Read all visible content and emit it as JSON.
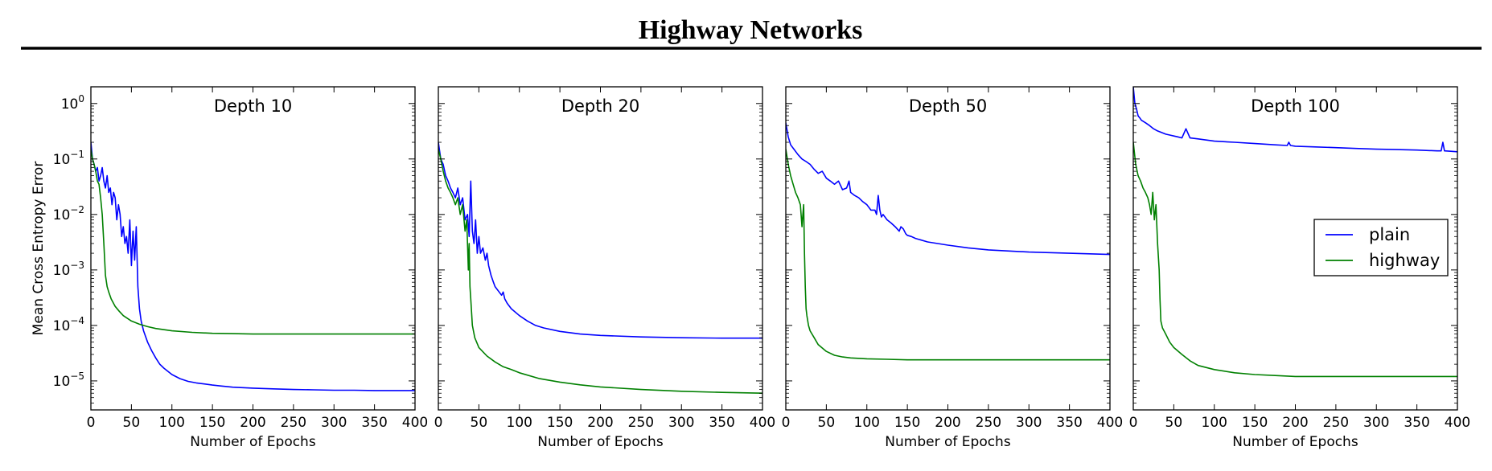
{
  "header": {
    "title": "Highway Networks"
  },
  "chart_data": [
    {
      "type": "line",
      "title": "Depth 10",
      "xlabel": "Number of Epochs",
      "ylabel": "Mean Cross Entropy Error",
      "yscale": "log",
      "xlim": [
        0,
        400
      ],
      "ylim": [
        3e-06,
        2
      ],
      "xticks": [
        "0",
        "50",
        "100",
        "150",
        "200",
        "250",
        "300",
        "350",
        "400"
      ],
      "yticks": [
        "10^0",
        "10^-1",
        "10^-2",
        "10^-3",
        "10^-4",
        "10^-5"
      ],
      "grid": false,
      "series": [
        {
          "name": "plain",
          "color": "#0000ff",
          "x": [
            0,
            2,
            4,
            6,
            8,
            10,
            12,
            14,
            16,
            18,
            20,
            22,
            24,
            26,
            28,
            30,
            32,
            34,
            36,
            38,
            40,
            42,
            44,
            46,
            48,
            50,
            52,
            54,
            56,
            58,
            60,
            62,
            65,
            70,
            75,
            80,
            85,
            90,
            100,
            110,
            120,
            130,
            140,
            150,
            160,
            175,
            200,
            225,
            250,
            275,
            300,
            325,
            350,
            375,
            400
          ],
          "y": [
            0.2,
            0.1,
            0.08,
            0.06,
            0.07,
            0.04,
            0.05,
            0.07,
            0.04,
            0.03,
            0.05,
            0.025,
            0.03,
            0.015,
            0.025,
            0.02,
            0.008,
            0.015,
            0.01,
            0.004,
            0.006,
            0.003,
            0.004,
            0.002,
            0.008,
            0.0012,
            0.005,
            0.0015,
            0.006,
            0.0005,
            0.0002,
            0.00012,
            8e-05,
            5e-05,
            3.5e-05,
            2.6e-05,
            2e-05,
            1.7e-05,
            1.3e-05,
            1.1e-05,
            9.8e-06,
            9.2e-06,
            8.8e-06,
            8.4e-06,
            8.1e-06,
            7.7e-06,
            7.4e-06,
            7.2e-06,
            7e-06,
            6.9e-06,
            6.8e-06,
            6.8e-06,
            6.7e-06,
            6.7e-06,
            6.7e-06
          ]
        },
        {
          "name": "highway",
          "color": "#008000",
          "x": [
            0,
            2,
            4,
            6,
            8,
            10,
            12,
            14,
            16,
            18,
            20,
            22,
            25,
            30,
            35,
            40,
            50,
            60,
            70,
            80,
            100,
            125,
            150,
            175,
            200,
            250,
            300,
            350,
            400
          ],
          "y": [
            0.15,
            0.1,
            0.08,
            0.06,
            0.04,
            0.035,
            0.02,
            0.01,
            0.003,
            0.0008,
            0.0005,
            0.0004,
            0.0003,
            0.00022,
            0.00018,
            0.00015,
            0.00012,
            0.000105,
            9.5e-05,
            8.8e-05,
            8e-05,
            7.5e-05,
            7.2e-05,
            7.1e-05,
            7e-05,
            7e-05,
            7e-05,
            7e-05,
            7e-05
          ]
        }
      ]
    },
    {
      "type": "line",
      "title": "Depth 20",
      "xlabel": "Number of Epochs",
      "yscale": "log",
      "xlim": [
        0,
        400
      ],
      "ylim": [
        3e-06,
        2
      ],
      "xticks": [
        "0",
        "50",
        "100",
        "150",
        "200",
        "250",
        "300",
        "350",
        "400"
      ],
      "grid": false,
      "series": [
        {
          "name": "plain",
          "color": "#0000ff",
          "x": [
            0,
            3,
            6,
            9,
            12,
            15,
            18,
            21,
            24,
            27,
            30,
            33,
            36,
            38,
            40,
            42,
            44,
            46,
            48,
            50,
            52,
            55,
            58,
            60,
            62,
            65,
            68,
            70,
            75,
            78,
            80,
            82,
            85,
            90,
            100,
            110,
            120,
            130,
            150,
            175,
            200,
            250,
            300,
            350,
            400
          ],
          "y": [
            0.2,
            0.1,
            0.08,
            0.05,
            0.04,
            0.03,
            0.025,
            0.02,
            0.03,
            0.015,
            0.02,
            0.008,
            0.01,
            0.004,
            0.04,
            0.005,
            0.003,
            0.008,
            0.002,
            0.004,
            0.002,
            0.0025,
            0.0015,
            0.002,
            0.0012,
            0.0008,
            0.0006,
            0.0005,
            0.0004,
            0.00035,
            0.0004,
            0.0003,
            0.00025,
            0.0002,
            0.00015,
            0.00012,
            0.0001,
            9e-05,
            7.8e-05,
            7e-05,
            6.6e-05,
            6.2e-05,
            6e-05,
            5.9e-05,
            5.9e-05
          ]
        },
        {
          "name": "highway",
          "color": "#008000",
          "x": [
            0,
            3,
            6,
            9,
            12,
            15,
            18,
            21,
            24,
            27,
            30,
            33,
            35,
            37,
            38,
            39,
            40,
            42,
            45,
            50,
            60,
            70,
            80,
            90,
            100,
            125,
            150,
            175,
            200,
            250,
            300,
            350,
            400
          ],
          "y": [
            0.15,
            0.1,
            0.06,
            0.04,
            0.03,
            0.025,
            0.02,
            0.015,
            0.02,
            0.01,
            0.015,
            0.005,
            0.008,
            0.001,
            0.003,
            0.0005,
            0.0003,
            0.0001,
            6e-05,
            4e-05,
            2.8e-05,
            2.2e-05,
            1.8e-05,
            1.6e-05,
            1.4e-05,
            1.1e-05,
            9.5e-06,
            8.5e-06,
            7.8e-06,
            7e-06,
            6.5e-06,
            6.2e-06,
            6e-06
          ]
        }
      ]
    },
    {
      "type": "line",
      "title": "Depth 50",
      "xlabel": "Number of Epochs",
      "yscale": "log",
      "xlim": [
        0,
        400
      ],
      "ylim": [
        3e-06,
        2
      ],
      "xticks": [
        "0",
        "50",
        "100",
        "150",
        "200",
        "250",
        "300",
        "350",
        "400"
      ],
      "grid": false,
      "series": [
        {
          "name": "plain",
          "color": "#0000ff",
          "x": [
            0,
            3,
            6,
            10,
            15,
            20,
            25,
            30,
            35,
            40,
            45,
            50,
            55,
            60,
            65,
            70,
            75,
            78,
            80,
            85,
            90,
            95,
            100,
            105,
            110,
            112,
            114,
            116,
            118,
            120,
            125,
            130,
            135,
            140,
            142,
            145,
            148,
            150,
            155,
            160,
            175,
            200,
            225,
            250,
            300,
            350,
            400
          ],
          "y": [
            0.45,
            0.25,
            0.18,
            0.15,
            0.12,
            0.1,
            0.09,
            0.08,
            0.065,
            0.055,
            0.06,
            0.045,
            0.04,
            0.035,
            0.04,
            0.028,
            0.03,
            0.04,
            0.025,
            0.022,
            0.02,
            0.017,
            0.015,
            0.012,
            0.012,
            0.01,
            0.022,
            0.012,
            0.009,
            0.01,
            0.008,
            0.007,
            0.006,
            0.005,
            0.006,
            0.0055,
            0.0045,
            0.0042,
            0.004,
            0.0037,
            0.0032,
            0.0028,
            0.0025,
            0.0023,
            0.0021,
            0.002,
            0.0019
          ]
        },
        {
          "name": "highway",
          "color": "#008000",
          "x": [
            0,
            3,
            6,
            9,
            12,
            15,
            18,
            20,
            21,
            22,
            23,
            24,
            25,
            26,
            28,
            30,
            35,
            40,
            50,
            60,
            70,
            80,
            100,
            125,
            150,
            175,
            200,
            250,
            300,
            350,
            400
          ],
          "y": [
            0.15,
            0.08,
            0.05,
            0.035,
            0.025,
            0.02,
            0.015,
            0.006,
            0.01,
            0.015,
            0.002,
            0.0005,
            0.0002,
            0.00015,
            0.0001,
            8e-05,
            6e-05,
            4.5e-05,
            3.4e-05,
            2.9e-05,
            2.7e-05,
            2.6e-05,
            2.5e-05,
            2.45e-05,
            2.4e-05,
            2.4e-05,
            2.4e-05,
            2.4e-05,
            2.4e-05,
            2.4e-05,
            2.4e-05
          ]
        }
      ]
    },
    {
      "type": "line",
      "title": "Depth 100",
      "xlabel": "Number of Epochs",
      "yscale": "log",
      "xlim": [
        0,
        400
      ],
      "ylim": [
        3e-06,
        2
      ],
      "xticks": [
        "0",
        "50",
        "100",
        "150",
        "200",
        "250",
        "300",
        "350",
        "400"
      ],
      "grid": false,
      "legend": {
        "position": "center-right",
        "entries": [
          "plain",
          "highway"
        ]
      },
      "series": [
        {
          "name": "plain",
          "color": "#0000ff",
          "x": [
            0,
            2,
            4,
            6,
            8,
            10,
            15,
            20,
            25,
            30,
            35,
            40,
            45,
            50,
            55,
            60,
            65,
            70,
            80,
            90,
            100,
            125,
            150,
            175,
            190,
            192,
            194,
            200,
            225,
            250,
            275,
            300,
            325,
            350,
            375,
            380,
            382,
            384,
            390,
            400
          ],
          "y": [
            2,
            1,
            0.8,
            0.6,
            0.55,
            0.5,
            0.45,
            0.4,
            0.35,
            0.32,
            0.3,
            0.28,
            0.27,
            0.26,
            0.25,
            0.24,
            0.35,
            0.24,
            0.23,
            0.22,
            0.21,
            0.2,
            0.19,
            0.18,
            0.175,
            0.2,
            0.175,
            0.17,
            0.165,
            0.16,
            0.155,
            0.15,
            0.148,
            0.145,
            0.14,
            0.14,
            0.2,
            0.14,
            0.138,
            0.135
          ]
        },
        {
          "name": "highway",
          "color": "#008000",
          "x": [
            0,
            3,
            6,
            9,
            12,
            15,
            18,
            20,
            22,
            24,
            26,
            28,
            30,
            32,
            33,
            34,
            36,
            40,
            45,
            50,
            60,
            70,
            80,
            100,
            125,
            150,
            175,
            200,
            250,
            300,
            350,
            400
          ],
          "y": [
            0.2,
            0.08,
            0.05,
            0.04,
            0.03,
            0.025,
            0.02,
            0.015,
            0.01,
            0.025,
            0.008,
            0.015,
            0.003,
            0.001,
            0.0003,
            0.00012,
            9e-05,
            7e-05,
            5e-05,
            4e-05,
            3e-05,
            2.3e-05,
            1.9e-05,
            1.6e-05,
            1.4e-05,
            1.3e-05,
            1.25e-05,
            1.2e-05,
            1.2e-05,
            1.2e-05,
            1.2e-05,
            1.2e-05
          ]
        }
      ]
    }
  ]
}
